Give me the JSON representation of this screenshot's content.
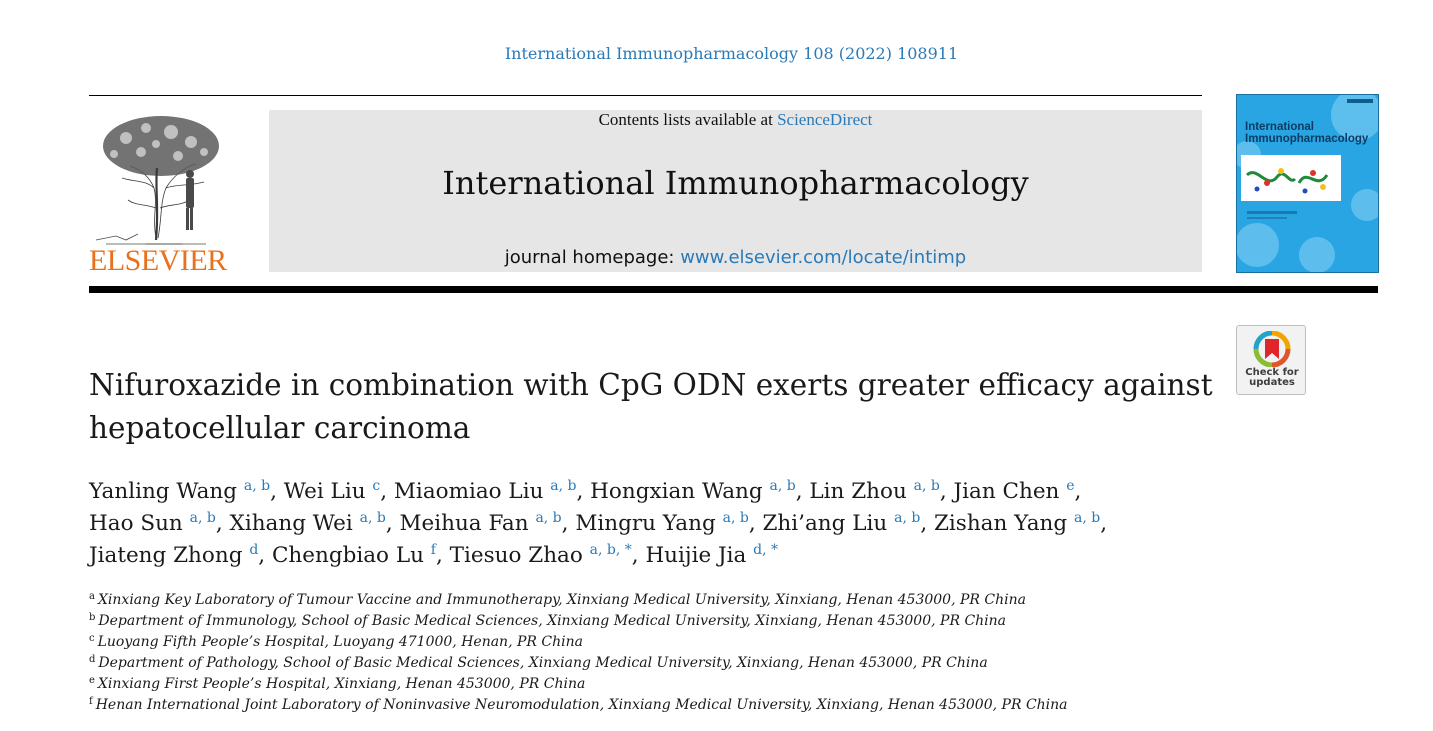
{
  "citation": "International Immunopharmacology 108 (2022) 108911",
  "masthead": {
    "contents_prefix": "Contents lists available at ",
    "contents_link": "ScienceDirect",
    "journal_name": "International Immunopharmacology",
    "homepage_prefix": "journal homepage: ",
    "homepage_link": "www.elsevier.com/locate/intimp"
  },
  "publisher": {
    "name": "ELSEVIER",
    "color": "#e9711c"
  },
  "cover": {
    "title_line1": "International",
    "title_line2": "Immunopharmacology",
    "color": "#28a6e5"
  },
  "check_updates": {
    "line1": "Check for",
    "line2": "updates"
  },
  "title": {
    "line1": "Nifuroxazide in combination with CpG ODN exerts greater efficacy against",
    "line2": "hepatocellular carcinoma"
  },
  "authors": [
    {
      "name": "Yanling Wang",
      "aff": "a, b"
    },
    {
      "name": "Wei Liu",
      "aff": "c"
    },
    {
      "name": "Miaomiao Liu",
      "aff": "a, b"
    },
    {
      "name": "Hongxian Wang",
      "aff": "a, b"
    },
    {
      "name": "Lin Zhou",
      "aff": "a, b"
    },
    {
      "name": "Jian Chen",
      "aff": "e"
    },
    {
      "name": "Hao Sun",
      "aff": "a, b"
    },
    {
      "name": "Xihang Wei",
      "aff": "a, b"
    },
    {
      "name": "Meihua Fan",
      "aff": "a, b"
    },
    {
      "name": "Mingru Yang",
      "aff": "a, b"
    },
    {
      "name": "Zhi’ang Liu",
      "aff": "a, b"
    },
    {
      "name": "Zishan Yang",
      "aff": "a, b"
    },
    {
      "name": "Jiateng Zhong",
      "aff": "d"
    },
    {
      "name": "Chengbiao Lu",
      "aff": "f"
    },
    {
      "name": "Tiesuo Zhao",
      "aff": "a, b, *"
    },
    {
      "name": "Huijie Jia",
      "aff": "d, *"
    }
  ],
  "affiliations": [
    {
      "key": "a",
      "text": "Xinxiang Key Laboratory of Tumour Vaccine and Immunotherapy, Xinxiang Medical University, Xinxiang, Henan 453000, PR China"
    },
    {
      "key": "b",
      "text": "Department of Immunology, School of Basic Medical Sciences, Xinxiang Medical University, Xinxiang, Henan 453000, PR China"
    },
    {
      "key": "c",
      "text": "Luoyang Fifth People’s Hospital, Luoyang 471000, Henan, PR China"
    },
    {
      "key": "d",
      "text": "Department of Pathology, School of Basic Medical Sciences, Xinxiang Medical University, Xinxiang, Henan 453000, PR China"
    },
    {
      "key": "e",
      "text": "Xinxiang First People’s Hospital, Xinxiang, Henan 453000, PR China"
    },
    {
      "key": "f",
      "text": "Henan International Joint Laboratory of Noninvasive Neuromodulation, Xinxiang Medical University, Xinxiang, Henan 453000, PR China"
    }
  ]
}
